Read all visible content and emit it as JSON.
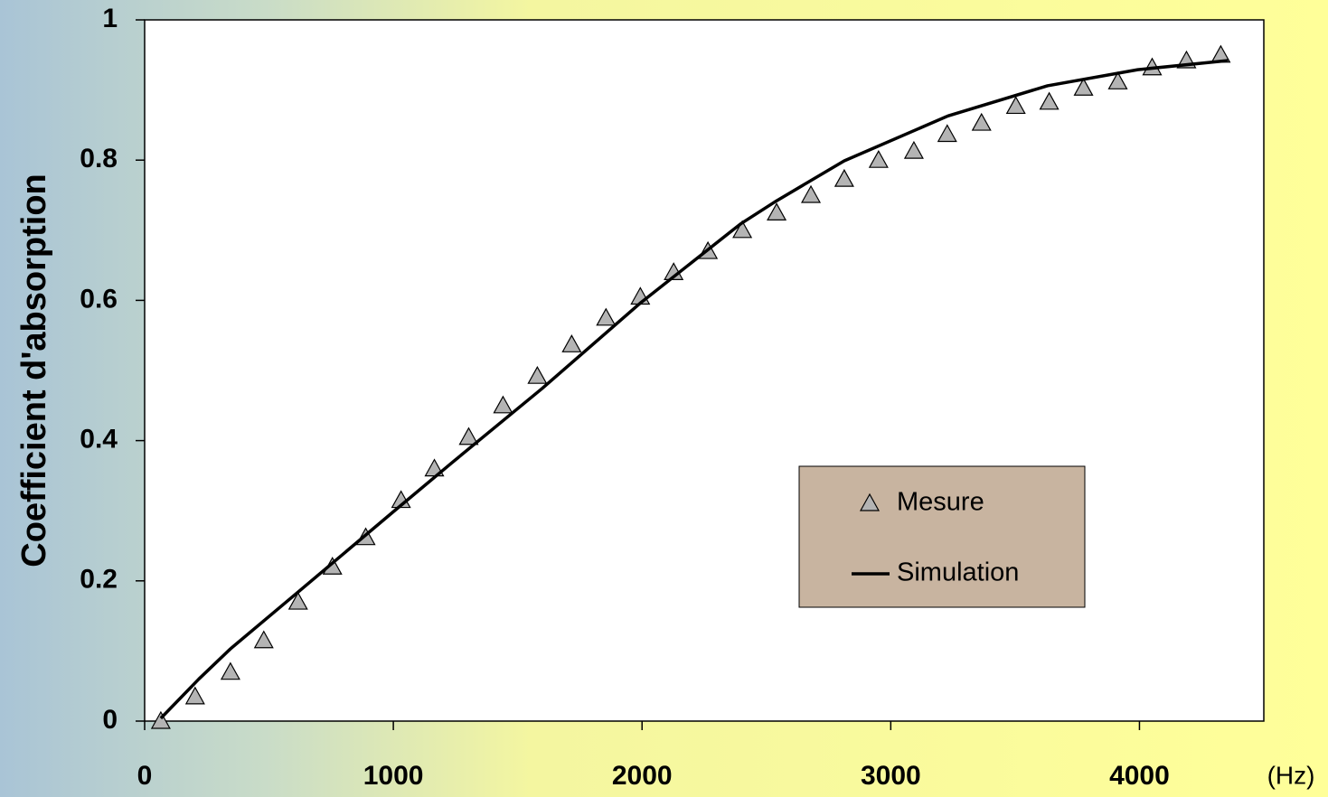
{
  "chart_data": {
    "type": "line",
    "y_label": "Coefficient d'absorption",
    "x_unit": "(Hz)",
    "xlim": [
      0,
      4500
    ],
    "xticks": [
      0,
      1000,
      2000,
      3000,
      4000
    ],
    "ylim": [
      0,
      1
    ],
    "yticks": [
      0,
      0.2,
      0.4,
      0.6,
      0.8,
      1
    ],
    "legend_position": "center-right",
    "series": [
      {
        "name": "Mesure",
        "style": "markers",
        "color": "#b4b4b4",
        "x": [
          65,
          203,
          345,
          479,
          617,
          755,
          889,
          1031,
          1165,
          1303,
          1441,
          1579,
          1717,
          1855,
          1993,
          2127,
          2265,
          2403,
          2541,
          2679,
          2813,
          2951,
          3093,
          3227,
          3365,
          3503,
          3637,
          3775,
          3913,
          4051,
          4189,
          4327
        ],
        "values": [
          0.0,
          0.035,
          0.07,
          0.115,
          0.17,
          0.22,
          0.262,
          0.315,
          0.36,
          0.405,
          0.45,
          0.492,
          0.537,
          0.575,
          0.605,
          0.64,
          0.67,
          0.7,
          0.725,
          0.75,
          0.773,
          0.8,
          0.813,
          0.837,
          0.853,
          0.877,
          0.883,
          0.903,
          0.912,
          0.932,
          0.942,
          0.95
        ]
      },
      {
        "name": "Simulation",
        "style": "line",
        "color": "#000000",
        "x": [
          65,
          218,
          345,
          617,
          998,
          1234,
          1597,
          1996,
          2396,
          2541,
          2813,
          3230,
          3630,
          3993,
          4356
        ],
        "values": [
          0.004,
          0.06,
          0.103,
          0.184,
          0.298,
          0.368,
          0.474,
          0.597,
          0.709,
          0.742,
          0.799,
          0.863,
          0.906,
          0.929,
          0.942
        ]
      }
    ]
  }
}
